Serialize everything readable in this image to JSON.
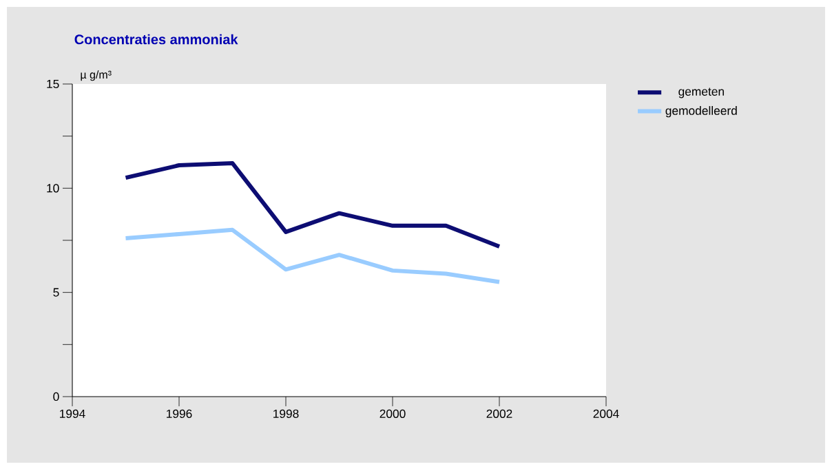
{
  "chart_data": {
    "type": "line",
    "title": "Concentraties ammoniak",
    "ylabel": "µ g/m³",
    "x": [
      1995,
      1996,
      1997,
      1998,
      1999,
      2000,
      2001,
      2002
    ],
    "series": [
      {
        "name": "gemeten",
        "color": "#0d0d73",
        "values": [
          10.5,
          11.1,
          11.2,
          7.9,
          8.8,
          8.2,
          8.2,
          7.2
        ]
      },
      {
        "name": "gemodelleerd",
        "color": "#99ccff",
        "values": [
          7.6,
          7.8,
          8.0,
          6.1,
          6.8,
          6.05,
          5.9,
          5.5
        ]
      }
    ],
    "xlim": [
      1994,
      2004
    ],
    "xticks": [
      1994,
      1996,
      1998,
      2000,
      2002,
      2004
    ],
    "ylim": [
      0,
      15
    ],
    "yticks": [
      0,
      {
        "value": 2.5,
        "label": null
      },
      5,
      {
        "value": 7.5,
        "label": null
      },
      10,
      {
        "value": 12.5,
        "label": null
      },
      15
    ],
    "grid": false,
    "legend": "top right",
    "line_style": "solid"
  }
}
